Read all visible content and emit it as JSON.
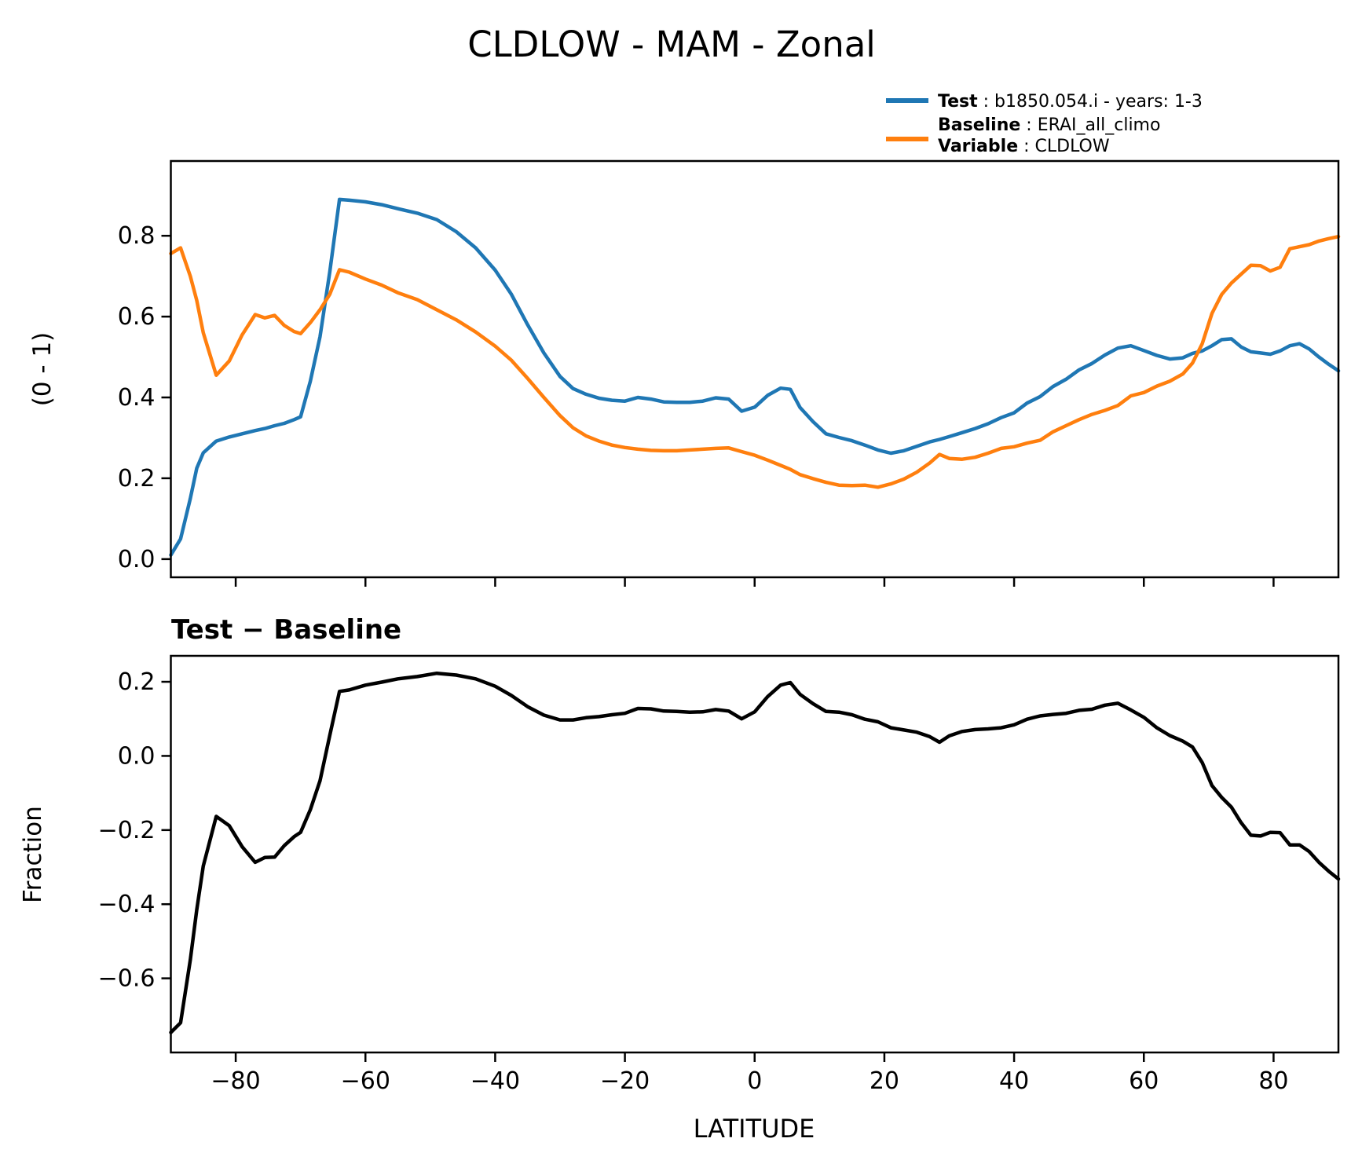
{
  "title": "CLDLOW - MAM - Zonal",
  "legend": {
    "entries": [
      {
        "label": "Test",
        "value": " : b1850.054.i - years: 1-3",
        "color": "#1f77b4"
      },
      {
        "label": "Baseline",
        "value": " : ERAI_all_climo",
        "color": "#ff7f0e"
      },
      {
        "label": "Variable",
        "value": " : CLDLOW",
        "color": null
      }
    ]
  },
  "colors": {
    "test": "#1f77b4",
    "baseline": "#ff7f0e",
    "diff": "#000000"
  },
  "chart_data": [
    {
      "type": "line",
      "title": "",
      "xlabel": "",
      "ylabel": "(0 - 1)",
      "xlim": [
        -90,
        90
      ],
      "ylim": [
        -0.045,
        0.985
      ],
      "xticks": [
        -80,
        -60,
        -40,
        -20,
        0,
        20,
        40,
        60,
        80
      ],
      "xticklabels": [],
      "yticks": [
        0.0,
        0.2,
        0.4,
        0.6,
        0.8
      ],
      "yticklabels": [
        "0.0",
        "0.2",
        "0.4",
        "0.6",
        "0.8"
      ],
      "grid": false,
      "legend_position": "upper right outside",
      "x": [
        -90,
        -88.5,
        -87,
        -86,
        -85,
        -83,
        -81,
        -79,
        -77,
        -75.5,
        -74,
        -72.5,
        -71,
        -70,
        -68.5,
        -67,
        -65.5,
        -64,
        -62.5,
        -60,
        -57.5,
        -55,
        -52,
        -49,
        -46,
        -43,
        -40,
        -37.5,
        -35,
        -32.5,
        -30,
        -28,
        -26,
        -24,
        -22,
        -20,
        -18,
        -16,
        -14,
        -12,
        -10,
        -8,
        -6,
        -4,
        -2,
        0,
        2,
        4,
        5.5,
        7,
        9,
        11,
        13,
        15,
        17,
        19,
        21,
        23,
        25,
        27,
        28.5,
        30,
        32,
        34,
        36,
        38,
        40,
        42,
        44,
        46,
        48,
        50,
        52,
        54,
        56,
        58,
        60,
        62,
        64,
        66,
        67.5,
        69,
        70.5,
        72,
        73.5,
        75,
        76.5,
        78,
        79.5,
        81,
        82.5,
        84,
        85.5,
        87,
        88.5,
        90
      ],
      "series": [
        {
          "name": "Test : b1850.054.i - years: 1-3",
          "color": "#1f77b4",
          "values": [
            0.01,
            0.05,
            0.15,
            0.225,
            0.263,
            0.292,
            0.302,
            0.31,
            0.318,
            0.323,
            0.33,
            0.336,
            0.345,
            0.352,
            0.44,
            0.55,
            0.71,
            0.89,
            0.888,
            0.884,
            0.877,
            0.867,
            0.856,
            0.84,
            0.81,
            0.77,
            0.715,
            0.655,
            0.58,
            0.51,
            0.452,
            0.422,
            0.408,
            0.398,
            0.393,
            0.391,
            0.4,
            0.396,
            0.389,
            0.388,
            0.388,
            0.391,
            0.399,
            0.396,
            0.366,
            0.376,
            0.405,
            0.423,
            0.42,
            0.375,
            0.34,
            0.31,
            0.301,
            0.293,
            0.282,
            0.27,
            0.262,
            0.268,
            0.279,
            0.29,
            0.296,
            0.303,
            0.313,
            0.323,
            0.335,
            0.35,
            0.362,
            0.386,
            0.402,
            0.427,
            0.445,
            0.468,
            0.484,
            0.505,
            0.522,
            0.528,
            0.516,
            0.504,
            0.495,
            0.498,
            0.509,
            0.515,
            0.528,
            0.543,
            0.545,
            0.525,
            0.513,
            0.51,
            0.507,
            0.515,
            0.528,
            0.533,
            0.52,
            0.5,
            0.482,
            0.466
          ]
        },
        {
          "name": "Baseline : ERAI_all_climo (CLDLOW)",
          "color": "#ff7f0e",
          "values": [
            0.756,
            0.77,
            0.7,
            0.64,
            0.56,
            0.455,
            0.49,
            0.555,
            0.605,
            0.597,
            0.603,
            0.578,
            0.563,
            0.558,
            0.585,
            0.617,
            0.655,
            0.716,
            0.71,
            0.693,
            0.678,
            0.659,
            0.642,
            0.617,
            0.592,
            0.562,
            0.527,
            0.492,
            0.447,
            0.4,
            0.355,
            0.325,
            0.305,
            0.292,
            0.282,
            0.276,
            0.272,
            0.269,
            0.268,
            0.268,
            0.27,
            0.272,
            0.274,
            0.275,
            0.266,
            0.257,
            0.245,
            0.232,
            0.222,
            0.209,
            0.199,
            0.19,
            0.183,
            0.182,
            0.183,
            0.178,
            0.186,
            0.198,
            0.215,
            0.238,
            0.259,
            0.249,
            0.247,
            0.252,
            0.262,
            0.274,
            0.278,
            0.287,
            0.294,
            0.315,
            0.33,
            0.345,
            0.358,
            0.368,
            0.38,
            0.404,
            0.412,
            0.428,
            0.44,
            0.458,
            0.485,
            0.533,
            0.608,
            0.655,
            0.683,
            0.705,
            0.727,
            0.726,
            0.713,
            0.722,
            0.768,
            0.773,
            0.778,
            0.787,
            0.793,
            0.798
          ]
        }
      ]
    },
    {
      "type": "line",
      "title": "Test − Baseline",
      "xlabel": "LATITUDE",
      "ylabel": "Fraction",
      "xlim": [
        -90,
        90
      ],
      "ylim": [
        -0.8,
        0.27
      ],
      "xticks": [
        -80,
        -60,
        -40,
        -20,
        0,
        20,
        40,
        60,
        80
      ],
      "xticklabels": [
        "−80",
        "−60",
        "−40",
        "−20",
        "0",
        "20",
        "40",
        "60",
        "80"
      ],
      "yticks": [
        0.2,
        0.0,
        -0.2,
        -0.4,
        -0.6
      ],
      "yticklabels": [
        "0.2",
        "0.0",
        "−0.2",
        "−0.4",
        "−0.6"
      ],
      "grid": false,
      "x": [
        -90,
        -88.5,
        -87,
        -86,
        -85,
        -83,
        -81,
        -79,
        -77,
        -75.5,
        -74,
        -72.5,
        -71,
        -70,
        -68.5,
        -67,
        -65.5,
        -64,
        -62.5,
        -60,
        -57.5,
        -55,
        -52,
        -49,
        -46,
        -43,
        -40,
        -37.5,
        -35,
        -32.5,
        -30,
        -28,
        -26,
        -24,
        -22,
        -20,
        -18,
        -16,
        -14,
        -12,
        -10,
        -8,
        -6,
        -4,
        -2,
        0,
        2,
        4,
        5.5,
        7,
        9,
        11,
        13,
        15,
        17,
        19,
        21,
        23,
        25,
        27,
        28.5,
        30,
        32,
        34,
        36,
        38,
        40,
        42,
        44,
        46,
        48,
        50,
        52,
        54,
        56,
        58,
        60,
        62,
        64,
        66,
        67.5,
        69,
        70.5,
        72,
        73.5,
        75,
        76.5,
        78,
        79.5,
        81,
        82.5,
        84,
        85.5,
        87,
        88.5,
        90
      ],
      "series": [
        {
          "name": "Test - Baseline",
          "color": "#000000",
          "values": [
            -0.746,
            -0.72,
            -0.55,
            -0.415,
            -0.297,
            -0.163,
            -0.188,
            -0.245,
            -0.287,
            -0.274,
            -0.273,
            -0.242,
            -0.218,
            -0.206,
            -0.145,
            -0.067,
            0.055,
            0.174,
            0.178,
            0.191,
            0.199,
            0.208,
            0.214,
            0.223,
            0.218,
            0.208,
            0.188,
            0.163,
            0.133,
            0.11,
            0.097,
            0.097,
            0.103,
            0.106,
            0.111,
            0.115,
            0.128,
            0.127,
            0.121,
            0.12,
            0.118,
            0.119,
            0.125,
            0.121,
            0.1,
            0.119,
            0.16,
            0.191,
            0.198,
            0.166,
            0.141,
            0.12,
            0.118,
            0.111,
            0.099,
            0.092,
            0.076,
            0.07,
            0.064,
            0.052,
            0.037,
            0.054,
            0.066,
            0.071,
            0.073,
            0.076,
            0.084,
            0.099,
            0.108,
            0.112,
            0.115,
            0.123,
            0.126,
            0.137,
            0.142,
            0.124,
            0.104,
            0.076,
            0.055,
            0.04,
            0.024,
            -0.018,
            -0.08,
            -0.112,
            -0.138,
            -0.18,
            -0.214,
            -0.216,
            -0.206,
            -0.207,
            -0.24,
            -0.24,
            -0.258,
            -0.287,
            -0.311,
            -0.332
          ]
        }
      ]
    }
  ]
}
